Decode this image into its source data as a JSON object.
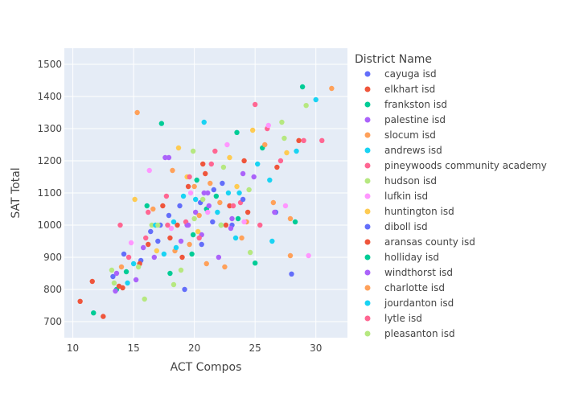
{
  "chart_data": {
    "type": "scatter",
    "xlabel": "ACT Compos",
    "ylabel": "SAT Total",
    "xlim": [
      9.3,
      32.6
    ],
    "ylim": [
      650,
      1550
    ],
    "xticks": [
      10,
      15,
      20,
      25,
      30
    ],
    "yticks": [
      700,
      800,
      900,
      1000,
      1100,
      1200,
      1300,
      1400,
      1500
    ],
    "grid": true,
    "legend_title": "District Name",
    "legend_position": "right",
    "series": [
      {
        "name": "cayuga isd",
        "color": "#636efa",
        "x": [
          14.2,
          16.4,
          17.9,
          19.2,
          21.6,
          23.1,
          28.0,
          17.0,
          20.5
        ],
        "y": [
          910,
          980,
          1030,
          800,
          1110,
          1000,
          848,
          950,
          1070
        ]
      },
      {
        "name": "elkhart isd",
        "color": "#EF553B",
        "x": [
          10.6,
          12.5,
          14.1,
          16.2,
          18.6,
          20.7,
          22.9,
          24.1,
          28.6,
          19.5
        ],
        "y": [
          763,
          716,
          805,
          940,
          1000,
          1190,
          1060,
          1200,
          1263,
          1120
        ]
      },
      {
        "name": "frankston isd",
        "color": "#00cc96",
        "x": [
          11.7,
          13.6,
          17.3,
          19.8,
          22.2,
          23.5,
          25.0,
          28.9,
          21.0
        ],
        "y": [
          727,
          800,
          1316,
          910,
          1000,
          1288,
          882,
          1430,
          1050
        ]
      },
      {
        "name": "palestine isd",
        "color": "#ab63fa",
        "x": [
          13.5,
          15.2,
          16.7,
          17.9,
          18.9,
          20.1,
          21.1,
          22.0,
          23.1,
          24.0,
          19.4,
          20.6
        ],
        "y": [
          795,
          830,
          900,
          1210,
          950,
          1040,
          1100,
          900,
          1020,
          1160,
          1000,
          970
        ]
      },
      {
        "name": "slocum isd",
        "color": "#FFA15A",
        "x": [
          15.3,
          18.2,
          19.6,
          20.4,
          21.3,
          22.5,
          24.3,
          26.5,
          31.3,
          27.9
        ],
        "y": [
          1350,
          1170,
          940,
          1030,
          1130,
          870,
          1010,
          1070,
          1425,
          905
        ]
      },
      {
        "name": "andrews isd",
        "color": "#19d3f3",
        "x": [
          14.5,
          17.5,
          19.1,
          20.8,
          23.7,
          25.2,
          26.4,
          30.0,
          18.3
        ],
        "y": [
          820,
          910,
          1090,
          1320,
          1100,
          1190,
          950,
          1390,
          1010
        ]
      },
      {
        "name": "pineywoods community academy",
        "color": "#FF6692",
        "x": [
          13.9,
          16.0,
          17.7,
          19.3,
          21.7,
          23.8,
          25.0,
          29.0,
          30.5,
          26.0
        ],
        "y": [
          1000,
          960,
          1090,
          1010,
          1230,
          1070,
          1375,
          1263,
          1263,
          1300
        ]
      },
      {
        "name": "hudson isd",
        "color": "#B6E880",
        "x": [
          13.2,
          15.9,
          16.5,
          18.3,
          20.0,
          22.4,
          24.6,
          27.2,
          29.2
        ],
        "y": [
          860,
          770,
          1000,
          815,
          1020,
          1180,
          915,
          1320,
          1372
        ]
      },
      {
        "name": "lufkin isd",
        "color": "#FF97FF",
        "x": [
          14.8,
          16.3,
          18.1,
          19.7,
          21.1,
          22.7,
          24.1,
          26.1,
          29.4,
          27.5
        ],
        "y": [
          945,
          1170,
          990,
          1100,
          1040,
          1250,
          1010,
          1310,
          905,
          1060
        ]
      },
      {
        "name": "huntington isd",
        "color": "#FECB52",
        "x": [
          15.1,
          16.9,
          18.7,
          19.4,
          20.3,
          22.9,
          24.8,
          27.6,
          23.5
        ],
        "y": [
          1080,
          920,
          1240,
          1150,
          980,
          1210,
          1295,
          1225,
          1120
        ]
      },
      {
        "name": "diboll isd",
        "color": "#636efa",
        "x": [
          13.3,
          15.6,
          17.2,
          18.8,
          20.6,
          22.3,
          24.0,
          26.7,
          21.5
        ],
        "y": [
          840,
          890,
          1000,
          1060,
          940,
          1130,
          1080,
          1040,
          1010
        ]
      },
      {
        "name": "aransas county isd",
        "color": "#EF553B",
        "x": [
          11.6,
          13.8,
          15.5,
          17.4,
          19.0,
          20.9,
          22.6,
          24.4,
          26.8,
          18.0
        ],
        "y": [
          825,
          810,
          880,
          1060,
          900,
          1160,
          1000,
          1040,
          1180,
          960
        ]
      },
      {
        "name": "holliday isd",
        "color": "#00cc96",
        "x": [
          14.4,
          16.1,
          18.0,
          19.9,
          21.8,
          23.6,
          25.6,
          28.3,
          20.2
        ],
        "y": [
          855,
          1060,
          850,
          970,
          1090,
          1020,
          1240,
          1010,
          1140
        ]
      },
      {
        "name": "windthorst isd",
        "color": "#ab63fa",
        "x": [
          13.6,
          15.8,
          17.6,
          19.5,
          21.2,
          23.0,
          24.9,
          26.6,
          20.8
        ],
        "y": [
          850,
          930,
          1210,
          1000,
          1060,
          990,
          1150,
          1040,
          1100
        ]
      },
      {
        "name": "charlotte isd",
        "color": "#FFA15A",
        "x": [
          14.0,
          16.6,
          18.4,
          20.0,
          22.1,
          23.9,
          25.8,
          27.9,
          21.0
        ],
        "y": [
          870,
          1050,
          920,
          1120,
          1070,
          960,
          1250,
          1020,
          880
        ]
      },
      {
        "name": "jourdanton isd",
        "color": "#19d3f3",
        "x": [
          15.0,
          16.8,
          18.5,
          20.1,
          21.9,
          23.4,
          26.2,
          28.4,
          22.8
        ],
        "y": [
          880,
          1000,
          930,
          1080,
          1040,
          960,
          1140,
          1230,
          1100
        ]
      },
      {
        "name": "lytle isd",
        "color": "#FF6692",
        "x": [
          14.6,
          16.2,
          17.8,
          19.6,
          21.4,
          23.2,
          25.4,
          27.1,
          20.4
        ],
        "y": [
          900,
          1040,
          1000,
          1150,
          1190,
          1060,
          1000,
          1200,
          960
        ]
      },
      {
        "name": "pleasanton isd",
        "color": "#B6E880",
        "x": [
          13.4,
          15.4,
          17.0,
          18.9,
          20.7,
          22.2,
          24.5,
          27.4,
          19.9
        ],
        "y": [
          820,
          870,
          1000,
          860,
          1080,
          1000,
          1110,
          1270,
          1230
        ]
      }
    ]
  }
}
